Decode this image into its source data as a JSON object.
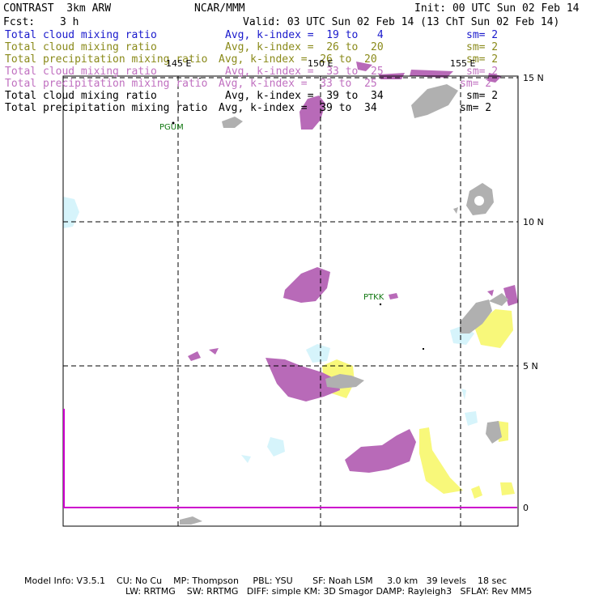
{
  "header": {
    "left_title": "CONTRAST  3km ARW",
    "center_title": "NCAR/MMM",
    "init": "Init: 00 UTC Sun 02 Feb 14",
    "fcst_label": "Fcst:",
    "fcst_value": "3 h",
    "valid": "Valid: 03 UTC Sun 02 Feb 14 (13 ChT Sun 02 Feb 14)"
  },
  "legend": [
    {
      "field": "Total cloud mixing ratio",
      "avg": "Avg, k-index =  19 to   4",
      "sm": "sm= 2",
      "color": "#1a1acc"
    },
    {
      "field": "Total cloud mixing ratio",
      "avg": "Avg, k-index =  26 to  20",
      "sm": "sm= 2",
      "color": "#8a8a1a"
    },
    {
      "field": "Total precipitation mixing ratio",
      "avg": "Avg, k-index =  26 to  20",
      "sm": "sm= 2",
      "color": "#8a8a1a"
    },
    {
      "field": "Total cloud mixing ratio",
      "avg": "Avg, k-index =  33 to  25",
      "sm": "sm= 2",
      "color": "#c070c0"
    },
    {
      "field": "Total precipitation mixing ratio",
      "avg": "Avg, k-index =  33 to  25",
      "sm": "sm= 2",
      "color": "#c070c0"
    },
    {
      "field": "Total cloud mixing ratio",
      "avg": "Avg, k-index =  39 to  34",
      "sm": "sm= 2",
      "color": "#000000"
    },
    {
      "field": "Total precipitation mixing ratio",
      "avg": "Avg, k-index =  39 to  34",
      "sm": "sm= 2",
      "color": "#000000"
    }
  ],
  "map": {
    "lon_labels": [
      "145 E",
      "150 E",
      "155 E"
    ],
    "lat_labels": [
      "15 N",
      "10 N",
      "5 N",
      "0"
    ],
    "stations": [
      "PGUM",
      "PTKK"
    ],
    "colors": {
      "cloud_light_blue": "#d6f4fb",
      "cloud_yellow": "#f8f87a",
      "precip_purple": "#b86ab8",
      "precip_grey": "#b0b0b0",
      "equator_line": "#cc00cc"
    }
  },
  "footer": {
    "line1": "Model Info: V3.5.1    CU: No Cu    MP: Thompson     PBL: YSU       SF: Noah LSM     3.0 km   39 levels    18 sec",
    "line2": "LW: RRTMG    SW: RRTMG   DIFF: simple KM: 3D Smagor DAMP: Rayleigh3   SFLAY: Rev MM5"
  }
}
